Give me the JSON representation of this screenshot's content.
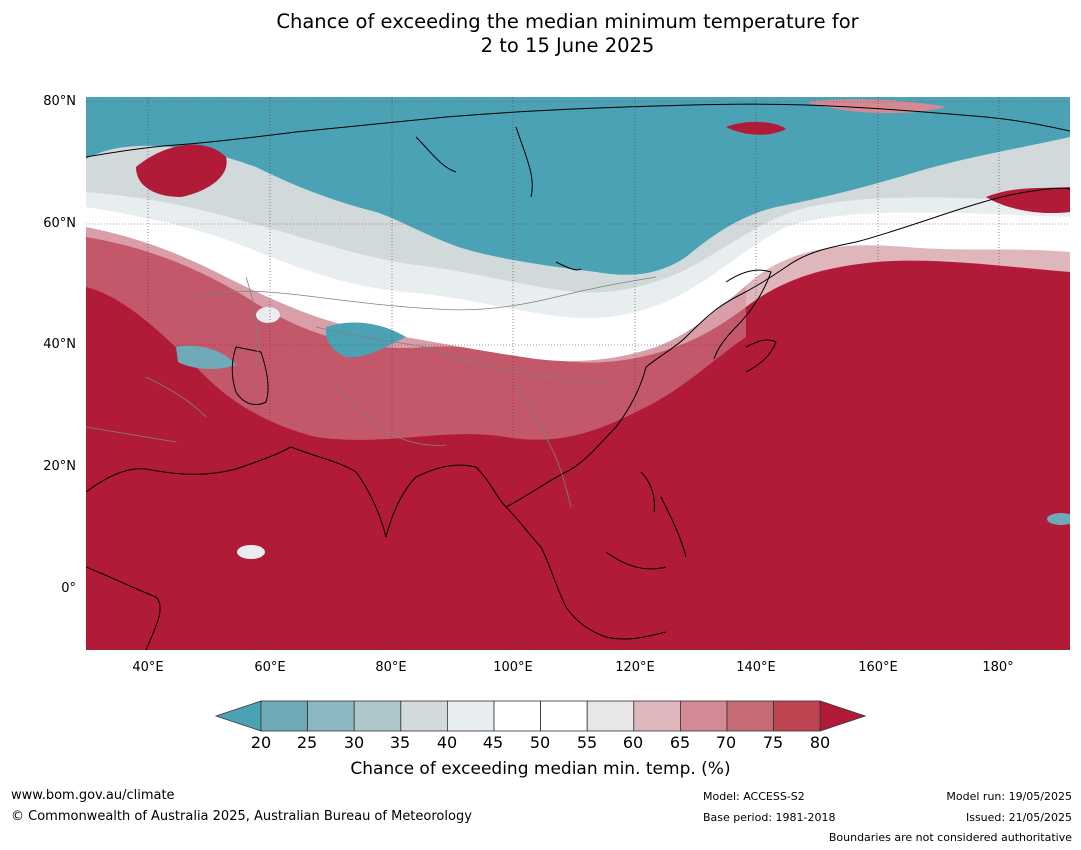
{
  "title": {
    "line1": "Chance of exceeding the median minimum temperature for",
    "line2": "2 to 15 June 2025"
  },
  "map": {
    "lat_labels": [
      "80°N",
      "60°N",
      "40°N",
      "20°N",
      "0°"
    ],
    "lon_labels": [
      "40°E",
      "60°E",
      "80°E",
      "100°E",
      "120°E",
      "140°E",
      "160°E",
      "180°"
    ],
    "colors": {
      "below_20": "#4aa2b4",
      "neutral": "#ffffff",
      "above_80": "#b11b38",
      "coastline": "#000000",
      "borders": "#808080"
    }
  },
  "colorbar": {
    "ticks": [
      "20",
      "25",
      "30",
      "35",
      "40",
      "45",
      "50",
      "55",
      "60",
      "65",
      "70",
      "75",
      "80"
    ],
    "colors": [
      "#4aa2b4",
      "#6eaab7",
      "#8ab7c1",
      "#aec6cc",
      "#d1d9db",
      "#e8eef0",
      "#ffffff",
      "#ffffff",
      "#e9e6e7",
      "#dfb6bc",
      "#d38a95",
      "#c66a75",
      "#bd4450",
      "#b11b38"
    ],
    "label": "Chance of exceeding median min. temp. (%)"
  },
  "footer": {
    "website": "www.bom.gov.au/climate",
    "copyright": "© Commonwealth of Australia 2025, Australian Bureau of Meteorology",
    "model": "Model: ACCESS-S2",
    "base_period": "Base period: 1981-2018",
    "model_run": "Model run: 19/05/2025",
    "issued": "Issued: 21/05/2025",
    "disclaimer": "Boundaries are not considered authoritative"
  }
}
